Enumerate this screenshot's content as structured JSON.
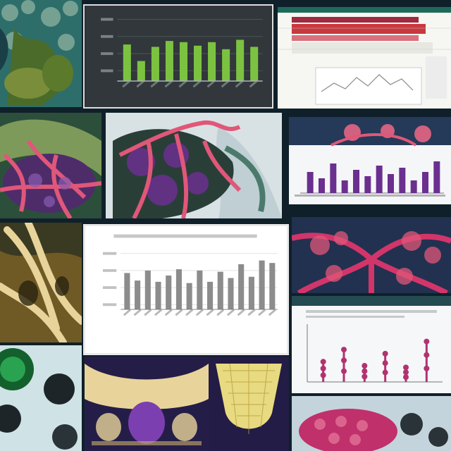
{
  "collage": {
    "colors": {
      "background": "#10202a",
      "teal": "#2a8a8c",
      "pink_vessel": "#e0577a",
      "purple": "#6b2f8f",
      "green_bar": "#7cc241",
      "gray_bar": "#8c8c8c",
      "magenta": "#b0336f",
      "bone": "#e8d49a"
    },
    "tiles": [
      {
        "name": "reef-texture-tile"
      },
      {
        "name": "dark-green-bar-chart-tile"
      },
      {
        "name": "spreadsheet-screenshot-tile"
      },
      {
        "name": "vascular-tissue-tile-left"
      },
      {
        "name": "vascular-tissue-tile-center"
      },
      {
        "name": "purple-bar-chart-tile"
      },
      {
        "name": "bone-structure-tile"
      },
      {
        "name": "gray-bar-chart-tile"
      },
      {
        "name": "red-vessel-network-tile"
      },
      {
        "name": "lollipop-chart-tile"
      },
      {
        "name": "green-spheres-tile"
      },
      {
        "name": "bone-mesh-tile-left"
      },
      {
        "name": "bone-mesh-tile-right"
      },
      {
        "name": "pink-honeycomb-tile"
      }
    ]
  },
  "chart_data": [
    {
      "type": "bar",
      "panel": "top-center",
      "values": [
        0.62,
        0.34,
        0.58,
        0.68,
        0.66,
        0.6,
        0.66,
        0.54,
        0.7,
        0.58
      ],
      "color": "#7cc241"
    },
    {
      "type": "bar",
      "panel": "middle-center",
      "values": [
        0.58,
        0.46,
        0.62,
        0.44,
        0.54,
        0.64,
        0.42,
        0.62,
        0.44,
        0.6,
        0.5,
        0.72,
        0.52,
        0.78,
        0.74
      ],
      "color": "#8c8c8c"
    },
    {
      "type": "bar",
      "panel": "right-upper",
      "values": [
        0.5,
        0.35,
        0.7,
        0.3,
        0.55,
        0.4,
        0.65,
        0.45,
        0.6,
        0.3,
        0.5,
        0.75
      ],
      "color": "#6b2f8f"
    },
    {
      "type": "scatter",
      "panel": "right-lower",
      "values": [
        0.25,
        0.4,
        0.2,
        0.35,
        0.18,
        0.5
      ],
      "color": "#b0336f"
    }
  ]
}
